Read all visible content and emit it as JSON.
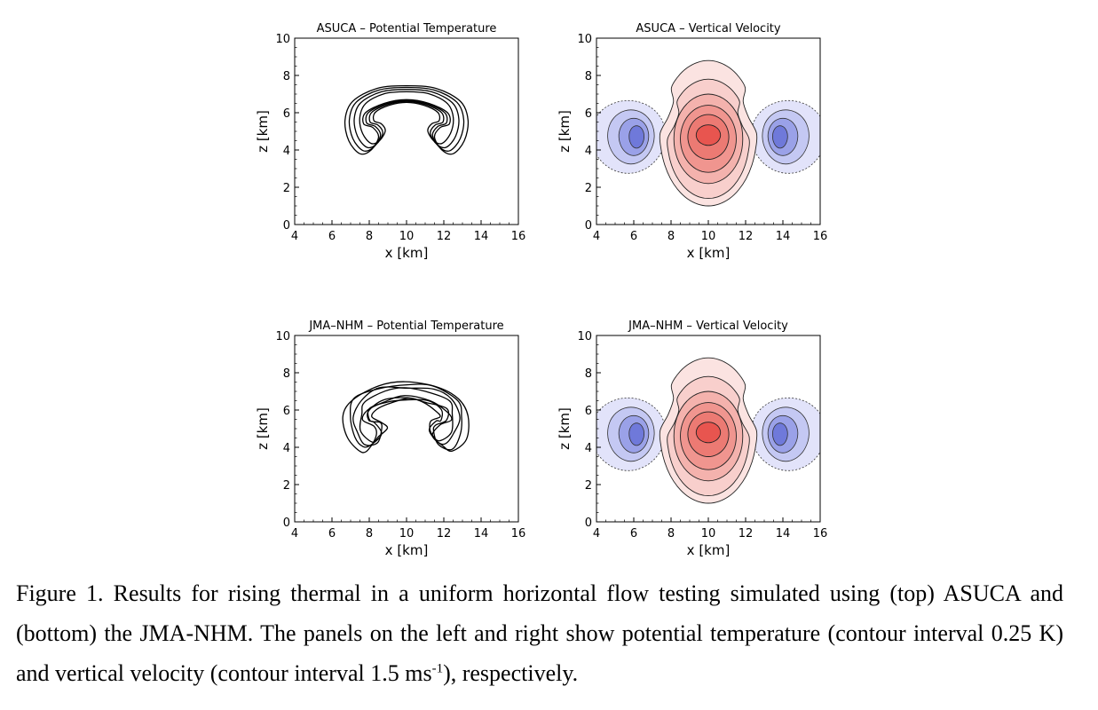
{
  "panels": [
    {
      "id": "p1",
      "title": "ASUCA  –  Potential Temperature",
      "kind": "theta",
      "xlabel": "x [km]",
      "ylabel": "z [km]"
    },
    {
      "id": "p2",
      "title": "ASUCA  –  Vertical Velocity",
      "kind": "w",
      "xlabel": "x [km]",
      "ylabel": "z [km]"
    },
    {
      "id": "p3",
      "title": "JMA–NHM  –  Potential Temperature",
      "kind": "theta",
      "xlabel": "x [km]",
      "ylabel": "z [km]"
    },
    {
      "id": "p4",
      "title": "JMA–NHM  –  Vertical Velocity",
      "kind": "w",
      "xlabel": "x [km]",
      "ylabel": "z [km]"
    }
  ],
  "axes": {
    "xticks": [
      "4",
      "6",
      "8",
      "10",
      "12",
      "14",
      "16"
    ],
    "yticks": [
      "0",
      "2",
      "4",
      "6",
      "8",
      "10"
    ],
    "xlim": [
      4,
      16
    ],
    "ylim": [
      0,
      10
    ]
  },
  "colors": {
    "positive": "#e8554f",
    "negative": "#5a66cf",
    "contour": "#000000"
  },
  "caption": {
    "part1": "Figure 1. Results for rising thermal in a uniform horizontal flow testing simulated using (top) ASUCA and (bottom) the JMA-NHM. The panels on the left and right show potential temperature (contour interval 0.25 K) and vertical velocity (contour interval 1.5 ms",
    "sup": "-1",
    "part2": "), respectively."
  }
}
